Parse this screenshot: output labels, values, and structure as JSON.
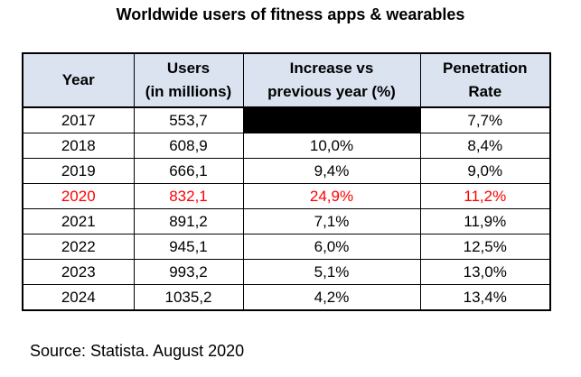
{
  "chart_data": {
    "type": "table",
    "title": "Worldwide users of fitness apps & wearables",
    "columns": [
      {
        "label": "Year"
      },
      {
        "label": "Users\n(in millions)"
      },
      {
        "label": "Increase vs\nprevious year (%)"
      },
      {
        "label": "Penetration\nRate"
      }
    ],
    "rows": [
      {
        "year": "2017",
        "users": "553,7",
        "increase": "",
        "penetration": "7,7%",
        "redacted_increase": true,
        "highlight": false
      },
      {
        "year": "2018",
        "users": "608,9",
        "increase": "10,0%",
        "penetration": "8,4%",
        "redacted_increase": false,
        "highlight": false
      },
      {
        "year": "2019",
        "users": "666,1",
        "increase": "9,4%",
        "penetration": "9,0%",
        "redacted_increase": false,
        "highlight": false
      },
      {
        "year": "2020",
        "users": "832,1",
        "increase": "24,9%",
        "penetration": "11,2%",
        "redacted_increase": false,
        "highlight": true
      },
      {
        "year": "2021",
        "users": "891,2",
        "increase": "7,1%",
        "penetration": "11,9%",
        "redacted_increase": false,
        "highlight": false
      },
      {
        "year": "2022",
        "users": "945,1",
        "increase": "6,0%",
        "penetration": "12,5%",
        "redacted_increase": false,
        "highlight": false
      },
      {
        "year": "2023",
        "users": "993,2",
        "increase": "5,1%",
        "penetration": "13,0%",
        "redacted_increase": false,
        "highlight": false
      },
      {
        "year": "2024",
        "users": "1035,2",
        "increase": "4,2%",
        "penetration": "13,4%",
        "redacted_increase": false,
        "highlight": false
      }
    ],
    "source": "Source: Statista. August 2020",
    "colors": {
      "header_bg": "#dbe3f1",
      "highlight_text": "#ff0000",
      "redacted_cell": "#000000",
      "border": "#000000"
    }
  }
}
